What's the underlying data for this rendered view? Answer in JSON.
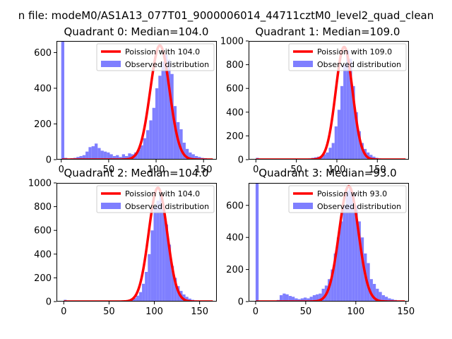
{
  "figure": {
    "suptitle": "n file: modeM0/AS1A13_077T01_9000006014_44711cztM0_level2_quad_clean"
  },
  "colors": {
    "hist_fill": "#7f7fff",
    "poisson_line": "#ff0000"
  },
  "chart_data": [
    {
      "type": "bar",
      "title": "Quadrant 0: Median=104.0",
      "xlabel": "",
      "ylabel": "",
      "xlim": [
        -5,
        164
      ],
      "ylim": [
        0,
        665
      ],
      "xticks": [
        0,
        50,
        100,
        150
      ],
      "yticks": [
        0,
        200,
        400,
        600
      ],
      "legend_position": "upper-right",
      "series": [
        {
          "name": "Observed distribution",
          "kind": "histogram",
          "bin_width": 3.2,
          "bin_starts": [
            0,
            3.2,
            6.4,
            9.6,
            12.8,
            16,
            19.2,
            22.4,
            25.6,
            28.8,
            32,
            35.2,
            38.4,
            41.6,
            44.8,
            48,
            51.2,
            54.4,
            57.6,
            60.8,
            64,
            67.2,
            70.4,
            73.6,
            76.8,
            80,
            83.2,
            86.4,
            89.6,
            92.8,
            96,
            99.2,
            102.4,
            105.6,
            108.8,
            112,
            115.2,
            118.4,
            121.6,
            124.8,
            128,
            131.2,
            134.4,
            137.6,
            140.8,
            144,
            147.2,
            150.4,
            153.6,
            156.8
          ],
          "values": [
            665,
            10,
            5,
            8,
            10,
            15,
            20,
            25,
            45,
            70,
            75,
            90,
            65,
            50,
            45,
            40,
            30,
            20,
            25,
            15,
            30,
            20,
            35,
            30,
            40,
            55,
            80,
            120,
            165,
            220,
            290,
            400,
            470,
            550,
            590,
            560,
            480,
            300,
            210,
            170,
            95,
            60,
            40,
            30,
            20,
            15,
            10,
            8,
            5,
            3
          ]
        },
        {
          "name": "Poission with 104.0",
          "kind": "poisson",
          "mean": 104.0,
          "peak": 640
        }
      ]
    },
    {
      "type": "bar",
      "title": "Quadrant 1: Median=109.0",
      "xlabel": "",
      "ylabel": "",
      "xlim": [
        -9,
        189
      ],
      "ylim": [
        0,
        1000
      ],
      "xticks": [
        0,
        50,
        100,
        150
      ],
      "yticks": [
        0,
        200,
        400,
        600,
        800,
        1000
      ],
      "legend_position": "upper-right",
      "series": [
        {
          "name": "Observed distribution",
          "kind": "histogram",
          "bin_width": 3.6,
          "bin_starts": [
            0,
            3.6,
            7.2,
            10.8,
            14.4,
            18,
            21.6,
            25.2,
            28.8,
            32.4,
            36,
            39.6,
            43.2,
            46.8,
            50.4,
            54,
            57.6,
            61.2,
            64.8,
            68.4,
            72,
            75.6,
            79.2,
            82.8,
            86.4,
            90,
            93.6,
            97.2,
            100.8,
            104.4,
            108,
            111.6,
            115.2,
            118.8,
            122.4,
            126,
            129.6,
            133.2,
            136.8,
            140.4,
            144,
            147.6,
            151.2,
            154.8,
            158.4,
            162,
            165.6,
            169.2,
            172.8
          ],
          "values": [
            15,
            5,
            3,
            2,
            2,
            2,
            2,
            2,
            2,
            2,
            2,
            2,
            2,
            2,
            2,
            3,
            5,
            8,
            10,
            15,
            20,
            25,
            30,
            45,
            60,
            100,
            140,
            280,
            420,
            620,
            800,
            920,
            850,
            620,
            400,
            240,
            140,
            90,
            60,
            40,
            25,
            15,
            10,
            8,
            5,
            4,
            3,
            2,
            2
          ]
        },
        {
          "name": "Poission with 109.0",
          "kind": "poisson",
          "mean": 109.0,
          "peak": 950
        }
      ]
    },
    {
      "type": "bar",
      "title": "Quadrant 2: Median=104.0",
      "xlabel": "",
      "ylabel": "",
      "xlim": [
        -8,
        169
      ],
      "ylim": [
        0,
        1000
      ],
      "xticks": [
        0,
        50,
        100,
        150
      ],
      "yticks": [
        0,
        200,
        400,
        600,
        800,
        1000
      ],
      "legend_position": "upper-right",
      "series": [
        {
          "name": "Observed distribution",
          "kind": "histogram",
          "bin_width": 3.2,
          "bin_starts": [
            0,
            3.2,
            6.4,
            9.6,
            12.8,
            16,
            19.2,
            22.4,
            25.6,
            28.8,
            32,
            35.2,
            38.4,
            41.6,
            44.8,
            48,
            51.2,
            54.4,
            57.6,
            60.8,
            64,
            67.2,
            70.4,
            73.6,
            76.8,
            80,
            83.2,
            86.4,
            89.6,
            92.8,
            96,
            99.2,
            102.4,
            105.6,
            108.8,
            112,
            115.2,
            118.4,
            121.6,
            124.8,
            128,
            131.2,
            134.4,
            137.6,
            140.8,
            144,
            147.2,
            150.4,
            153.6,
            156.8
          ],
          "values": [
            15,
            2,
            1,
            1,
            1,
            1,
            1,
            1,
            1,
            1,
            1,
            1,
            1,
            1,
            1,
            1,
            1,
            1,
            1,
            2,
            3,
            5,
            10,
            20,
            30,
            50,
            80,
            150,
            250,
            400,
            600,
            800,
            850,
            900,
            780,
            650,
            480,
            300,
            200,
            130,
            90,
            60,
            40,
            25,
            15,
            10,
            5,
            3,
            2,
            1
          ]
        },
        {
          "name": "Poission with 104.0",
          "kind": "poisson",
          "mean": 104.0,
          "peak": 960
        }
      ]
    },
    {
      "type": "bar",
      "title": "Quadrant 3: Median=93.0",
      "xlabel": "",
      "ylabel": "",
      "xlim": [
        -7,
        153
      ],
      "ylim": [
        0,
        740
      ],
      "xticks": [
        0,
        50,
        100,
        150
      ],
      "yticks": [
        0,
        200,
        400,
        600
      ],
      "legend_position": "upper-right",
      "series": [
        {
          "name": "Observed distribution",
          "kind": "histogram",
          "bin_width": 3.0,
          "bin_starts": [
            0,
            3,
            6,
            9,
            12,
            15,
            18,
            21,
            24,
            27,
            30,
            33,
            36,
            39,
            42,
            45,
            48,
            51,
            54,
            57,
            60,
            63,
            66,
            69,
            72,
            75,
            78,
            81,
            84,
            87,
            90,
            93,
            96,
            99,
            102,
            105,
            108,
            111,
            114,
            117,
            120,
            123,
            126,
            129,
            132,
            135,
            138,
            141,
            144
          ],
          "values": [
            740,
            5,
            2,
            2,
            2,
            3,
            5,
            10,
            40,
            50,
            45,
            35,
            30,
            20,
            15,
            20,
            25,
            20,
            30,
            40,
            45,
            50,
            80,
            100,
            140,
            200,
            300,
            400,
            500,
            600,
            690,
            710,
            680,
            600,
            500,
            400,
            300,
            240,
            140,
            110,
            80,
            60,
            40,
            30,
            20,
            15,
            10,
            5,
            3
          ]
        },
        {
          "name": "Poission with 93.0",
          "kind": "poisson",
          "mean": 93.0,
          "peak": 720
        }
      ]
    }
  ]
}
